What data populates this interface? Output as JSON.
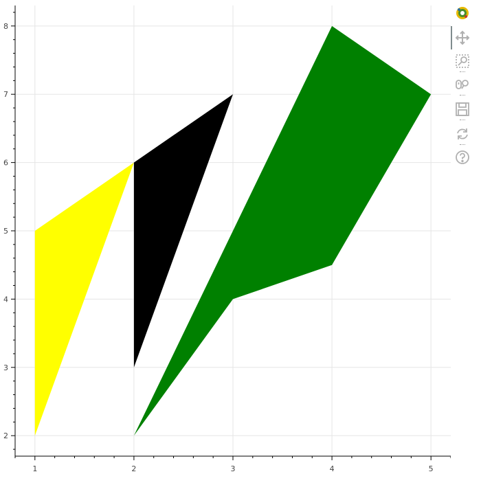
{
  "chart_data": {
    "type": "patches",
    "title": "",
    "xlabel": "",
    "ylabel": "",
    "xlim": [
      0.8,
      5.2
    ],
    "ylim": [
      1.7,
      8.3
    ],
    "grid": true,
    "x_ticks": [
      1,
      2,
      3,
      4,
      5
    ],
    "y_ticks": [
      2,
      3,
      4,
      5,
      6,
      7,
      8
    ],
    "patches": [
      {
        "color": "#ffff00",
        "xs": [
          1,
          1,
          2
        ],
        "ys": [
          2,
          5,
          6
        ]
      },
      {
        "color": "#000000",
        "xs": [
          2,
          2,
          3
        ],
        "ys": [
          3,
          6,
          7
        ]
      },
      {
        "color": "#008000",
        "xs": [
          2,
          3,
          4,
          5,
          4
        ],
        "ys": [
          2,
          4,
          4.5,
          7,
          8
        ]
      }
    ]
  },
  "toolbar": {
    "tools": [
      {
        "name": "bokeh-logo-icon",
        "interactable": true
      },
      {
        "name": "pan-tool-icon",
        "interactable": true
      },
      {
        "name": "box-zoom-tool-icon",
        "interactable": true
      },
      {
        "name": "wheel-zoom-tool-icon",
        "interactable": true
      },
      {
        "name": "save-tool-icon",
        "interactable": true
      },
      {
        "name": "reset-tool-icon",
        "interactable": true
      },
      {
        "name": "help-tool-icon",
        "interactable": true
      }
    ]
  }
}
